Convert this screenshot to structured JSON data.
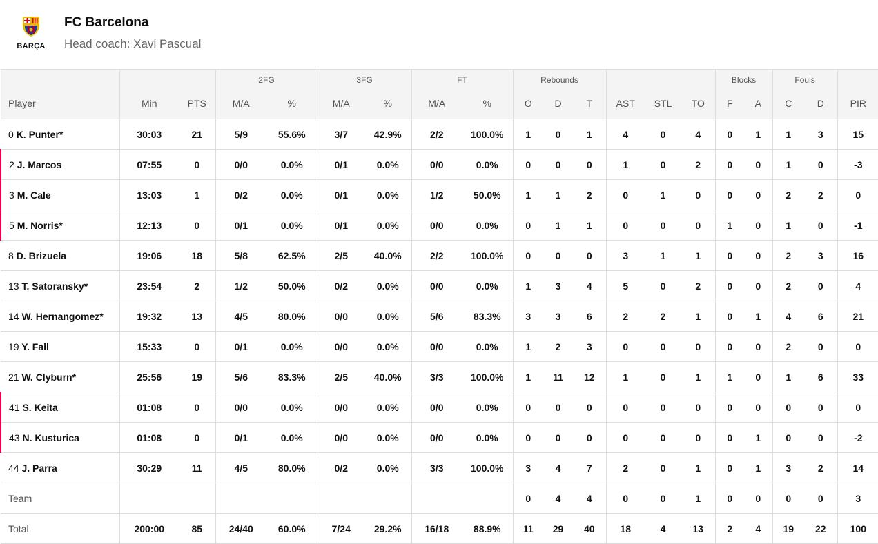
{
  "team": {
    "name": "FC Barcelona",
    "coach": "Head coach: Xavi Pascual",
    "logo_text": "BARÇA"
  },
  "groups": {
    "fg2": "2FG",
    "fg3": "3FG",
    "ft": "FT",
    "reb": "Rebounds",
    "blk": "Blocks",
    "fouls": "Fouls"
  },
  "columns": [
    "Player",
    "Min",
    "PTS",
    "M/A",
    "%",
    "M/A",
    "%",
    "M/A",
    "%",
    "O",
    "D",
    "T",
    "AST",
    "STL",
    "TO",
    "F",
    "A",
    "C",
    "D",
    "PIR"
  ],
  "rows": [
    {
      "num": "0",
      "name": "K. Punter*",
      "sub": false,
      "stats": [
        "30:03",
        "21",
        "5/9",
        "55.6%",
        "3/7",
        "42.9%",
        "2/2",
        "100.0%",
        "1",
        "0",
        "1",
        "4",
        "0",
        "4",
        "0",
        "1",
        "1",
        "3",
        "15"
      ]
    },
    {
      "num": "2",
      "name": "J. Marcos",
      "sub": true,
      "stats": [
        "07:55",
        "0",
        "0/0",
        "0.0%",
        "0/1",
        "0.0%",
        "0/0",
        "0.0%",
        "0",
        "0",
        "0",
        "1",
        "0",
        "2",
        "0",
        "0",
        "1",
        "0",
        "-3"
      ]
    },
    {
      "num": "3",
      "name": "M. Cale",
      "sub": true,
      "stats": [
        "13:03",
        "1",
        "0/2",
        "0.0%",
        "0/1",
        "0.0%",
        "1/2",
        "50.0%",
        "1",
        "1",
        "2",
        "0",
        "1",
        "0",
        "0",
        "0",
        "2",
        "2",
        "0"
      ]
    },
    {
      "num": "5",
      "name": "M. Norris*",
      "sub": true,
      "stats": [
        "12:13",
        "0",
        "0/1",
        "0.0%",
        "0/1",
        "0.0%",
        "0/0",
        "0.0%",
        "0",
        "1",
        "1",
        "0",
        "0",
        "0",
        "1",
        "0",
        "1",
        "0",
        "-1"
      ]
    },
    {
      "num": "8",
      "name": "D. Brizuela",
      "sub": false,
      "stats": [
        "19:06",
        "18",
        "5/8",
        "62.5%",
        "2/5",
        "40.0%",
        "2/2",
        "100.0%",
        "0",
        "0",
        "0",
        "3",
        "1",
        "1",
        "0",
        "0",
        "2",
        "3",
        "16"
      ]
    },
    {
      "num": "13",
      "name": "T. Satoransky*",
      "sub": false,
      "stats": [
        "23:54",
        "2",
        "1/2",
        "50.0%",
        "0/2",
        "0.0%",
        "0/0",
        "0.0%",
        "1",
        "3",
        "4",
        "5",
        "0",
        "2",
        "0",
        "0",
        "2",
        "0",
        "4"
      ]
    },
    {
      "num": "14",
      "name": "W. Hernangomez*",
      "sub": false,
      "stats": [
        "19:32",
        "13",
        "4/5",
        "80.0%",
        "0/0",
        "0.0%",
        "5/6",
        "83.3%",
        "3",
        "3",
        "6",
        "2",
        "2",
        "1",
        "0",
        "1",
        "4",
        "6",
        "21"
      ]
    },
    {
      "num": "19",
      "name": "Y. Fall",
      "sub": false,
      "stats": [
        "15:33",
        "0",
        "0/1",
        "0.0%",
        "0/0",
        "0.0%",
        "0/0",
        "0.0%",
        "1",
        "2",
        "3",
        "0",
        "0",
        "0",
        "0",
        "0",
        "2",
        "0",
        "0"
      ]
    },
    {
      "num": "21",
      "name": "W. Clyburn*",
      "sub": false,
      "stats": [
        "25:56",
        "19",
        "5/6",
        "83.3%",
        "2/5",
        "40.0%",
        "3/3",
        "100.0%",
        "1",
        "11",
        "12",
        "1",
        "0",
        "1",
        "1",
        "0",
        "1",
        "6",
        "33"
      ]
    },
    {
      "num": "41",
      "name": "S. Keita",
      "sub": true,
      "stats": [
        "01:08",
        "0",
        "0/0",
        "0.0%",
        "0/0",
        "0.0%",
        "0/0",
        "0.0%",
        "0",
        "0",
        "0",
        "0",
        "0",
        "0",
        "0",
        "0",
        "0",
        "0",
        "0"
      ]
    },
    {
      "num": "43",
      "name": "N. Kusturica",
      "sub": true,
      "stats": [
        "01:08",
        "0",
        "0/1",
        "0.0%",
        "0/0",
        "0.0%",
        "0/0",
        "0.0%",
        "0",
        "0",
        "0",
        "0",
        "0",
        "0",
        "0",
        "1",
        "0",
        "0",
        "-2"
      ]
    },
    {
      "num": "44",
      "name": "J. Parra",
      "sub": false,
      "stats": [
        "30:29",
        "11",
        "4/5",
        "80.0%",
        "0/2",
        "0.0%",
        "3/3",
        "100.0%",
        "3",
        "4",
        "7",
        "2",
        "0",
        "1",
        "0",
        "1",
        "3",
        "2",
        "14"
      ]
    }
  ],
  "team_row": {
    "label": "Team",
    "stats": [
      "",
      "",
      "",
      "",
      "",
      "",
      "",
      "",
      "0",
      "4",
      "4",
      "0",
      "0",
      "1",
      "0",
      "0",
      "0",
      "0",
      "3"
    ]
  },
  "total_row": {
    "label": "Total",
    "stats": [
      "200:00",
      "85",
      "24/40",
      "60.0%",
      "7/24",
      "29.2%",
      "16/18",
      "88.9%",
      "11",
      "29",
      "40",
      "18",
      "4",
      "13",
      "2",
      "4",
      "19",
      "22",
      "100"
    ]
  }
}
